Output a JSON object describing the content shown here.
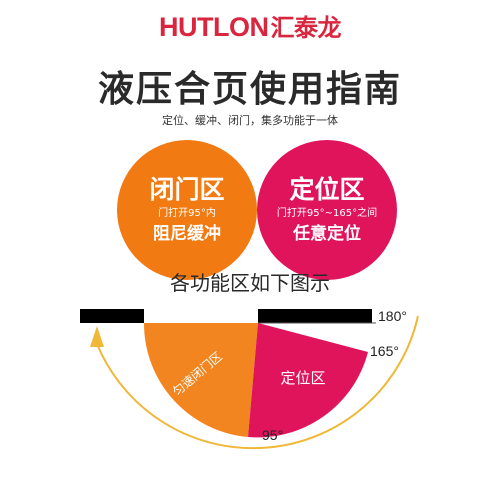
{
  "brand": {
    "name_en": "HUTLON",
    "name_cn": "汇泰龙"
  },
  "title": "液压合页使用指南",
  "subtitle": "定位、缓冲、闭门，集多功能于一体",
  "zones": {
    "closing": {
      "name": "闭门区",
      "desc": "门打开95°内",
      "func": "阻尼缓冲",
      "color": "#f27a12"
    },
    "positioning": {
      "name": "定位区",
      "desc": "门打开95°~165°之间",
      "func": "任意定位",
      "color": "#e0145b"
    }
  },
  "section_title": "各功能区如下图示",
  "diagram": {
    "angle_labels": {
      "a180": "180°",
      "a165": "165°",
      "a95": "95°"
    },
    "sector_labels": {
      "closing": "匀速闭门区",
      "positioning": "定位区"
    },
    "colors": {
      "closing": "#f28520",
      "positioning": "#e0145b",
      "arrow": "#f0b838",
      "bar": "#000000"
    }
  }
}
